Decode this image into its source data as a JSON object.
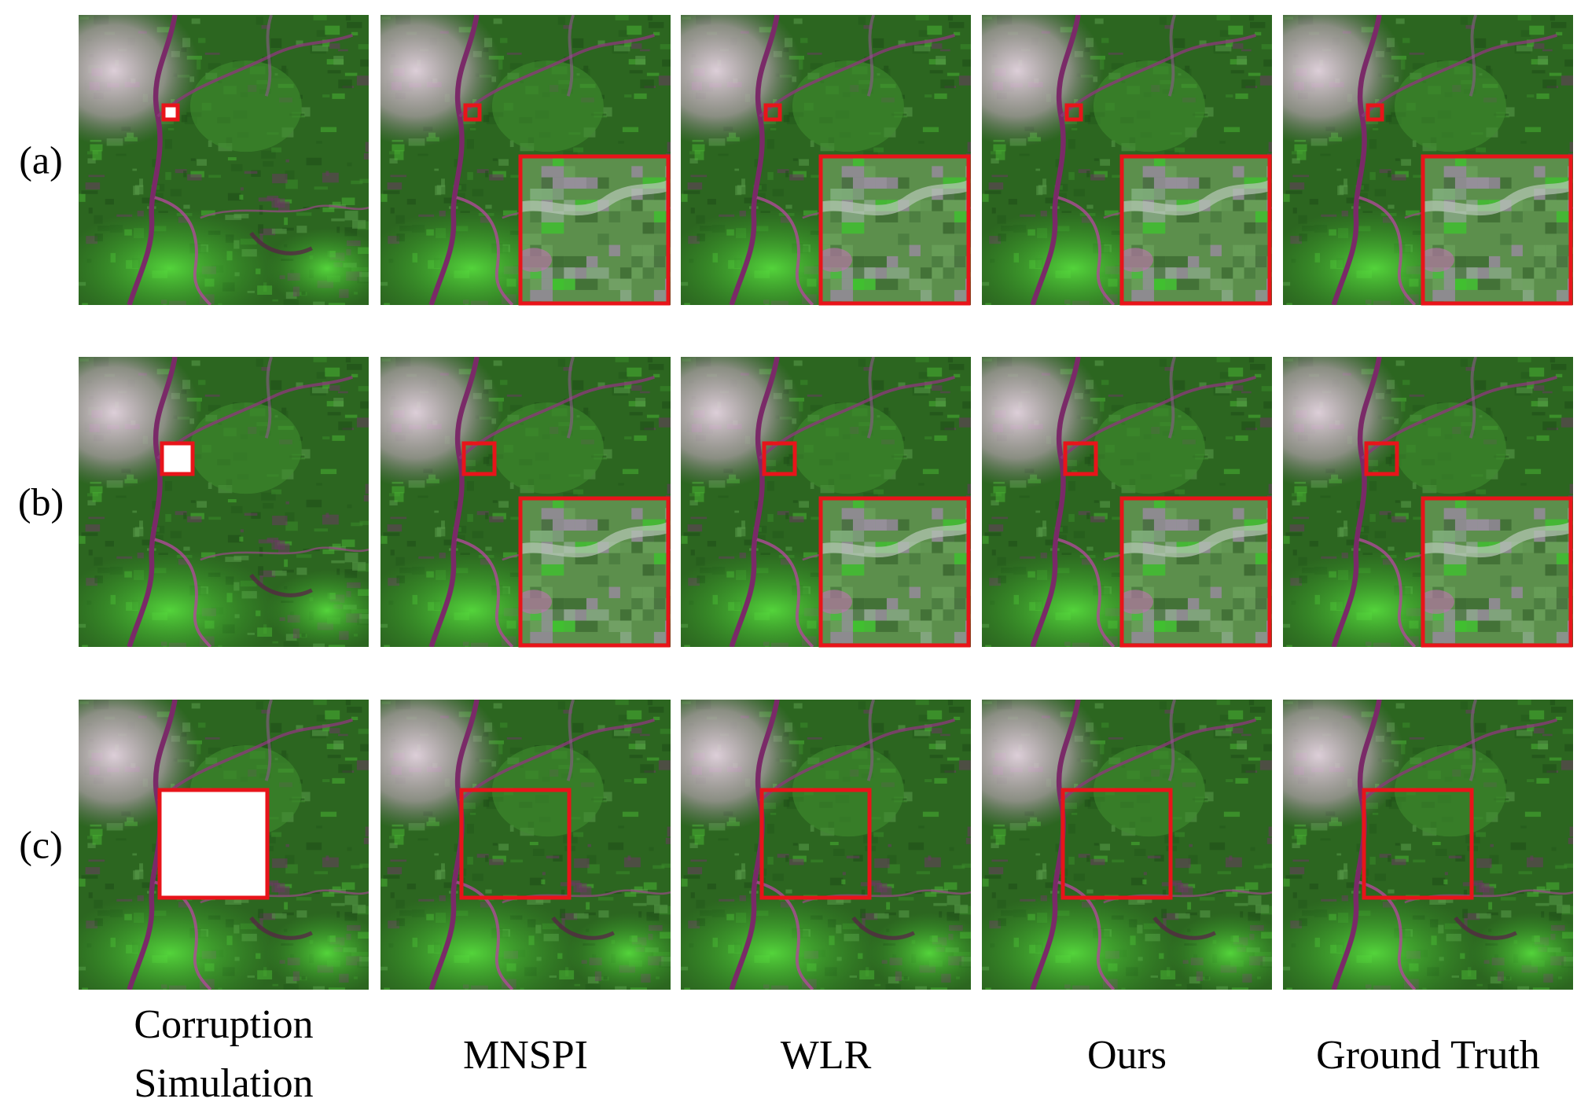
{
  "row_labels": [
    "(a)",
    "(b)",
    "(c)"
  ],
  "column_labels": [
    [
      "Corruption",
      "Simulation"
    ],
    [
      "MNSPI"
    ],
    [
      "WLR"
    ],
    [
      "Ours"
    ],
    [
      "Ground Truth"
    ]
  ]
}
